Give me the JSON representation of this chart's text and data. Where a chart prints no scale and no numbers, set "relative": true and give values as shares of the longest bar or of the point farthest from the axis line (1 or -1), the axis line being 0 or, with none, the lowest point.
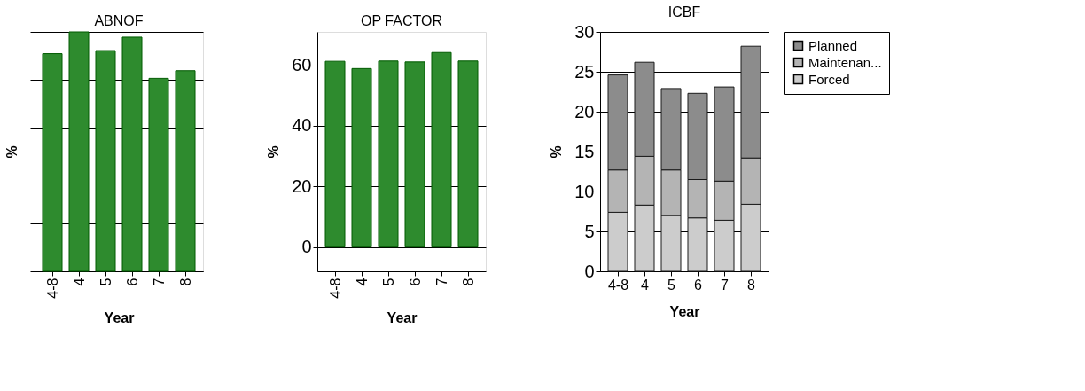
{
  "chart_data": [
    {
      "type": "bar",
      "title": "ABNOF",
      "xlabel": "Year",
      "ylabel": "%",
      "relative": true,
      "grid": "y",
      "categories": [
        "4-8",
        "4",
        "5",
        "6",
        "7",
        "8"
      ],
      "values": [
        0.909,
        1,
        0.922,
        0.978,
        0.806,
        0.838
      ],
      "color": "#2e8b2e"
    },
    {
      "type": "bar",
      "title": "OP FACTOR",
      "xlabel": "Year",
      "ylabel": "%",
      "grid": "y",
      "categories": [
        "4-8",
        "4",
        "5",
        "6",
        "7",
        "8"
      ],
      "values": [
        61.3,
        58.9,
        61.4,
        61.1,
        64.2,
        61.4
      ],
      "color": "#2e8b2e",
      "ylim": [
        -8,
        71
      ],
      "yticks": [
        0,
        20,
        40,
        60
      ]
    },
    {
      "type": "bar",
      "title": "ICBF",
      "xlabel": "Year",
      "ylabel": "%",
      "grid": "y",
      "stacked": true,
      "legend": "top right",
      "categories": [
        "4-8",
        "4",
        "5",
        "6",
        "7",
        "8"
      ],
      "ylim": [
        0,
        30
      ],
      "yticks": [
        0,
        5,
        10,
        15,
        20,
        25,
        30
      ],
      "series": [
        {
          "name": "Forced",
          "color": "#cccccc",
          "values": [
            7.4,
            8.3,
            7.0,
            6.7,
            6.4,
            8.4
          ]
        },
        {
          "name": "Maintenan...",
          "color": "#b4b4b4",
          "values": [
            5.3,
            6.1,
            5.7,
            4.8,
            4.9,
            5.8
          ]
        },
        {
          "name": "Planned",
          "color": "#8c8c8c",
          "values": [
            11.9,
            11.8,
            10.2,
            10.8,
            11.8,
            14.0
          ]
        }
      ]
    }
  ]
}
